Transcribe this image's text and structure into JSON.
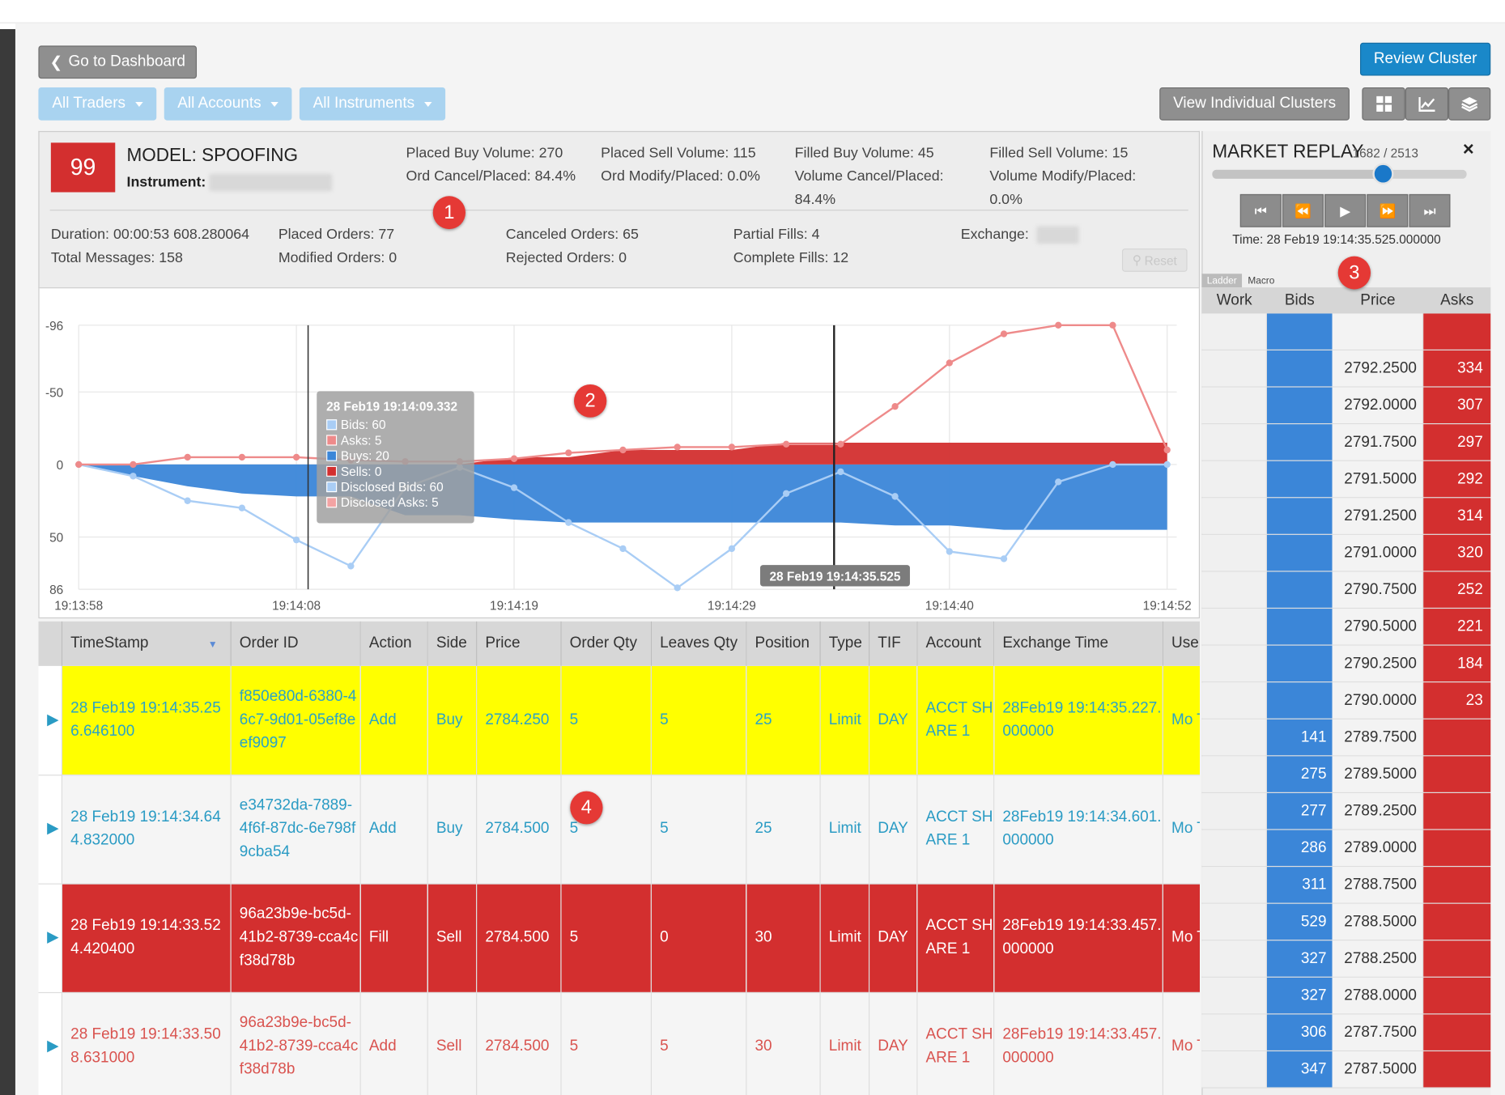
{
  "header": {
    "back_button": "Go to Dashboard",
    "review_button": "Review Cluster",
    "filters": [
      "All Traders",
      "All Accounts",
      "All Instruments"
    ],
    "view_clusters_button": "View Individual Clusters"
  },
  "summary": {
    "score": "99",
    "model": "MODEL: SPOOFING",
    "instrument_label": "Instrument:",
    "placed_buy": "Placed Buy Volume: 270",
    "placed_sell": "Placed Sell Volume: 115",
    "filled_buy": "Filled Buy Volume: 45",
    "filled_sell": "Filled Sell Volume: 15",
    "ord_cancel": "Ord Cancel/Placed: 84.4%",
    "ord_modify": "Ord Modify/Placed: 0.0%",
    "vol_cancel_1": "Volume Cancel/Placed:",
    "vol_cancel_2": "84.4%",
    "vol_modify_1": "Volume Modify/Placed:",
    "vol_modify_2": "0.0%",
    "duration": "Duration: 00:00:53 608.280064",
    "total_messages": "Total Messages: 158",
    "placed_orders": "Placed Orders: 77",
    "modified_orders": "Modified Orders: 0",
    "canceled_orders": "Canceled Orders: 65",
    "rejected_orders": "Rejected Orders: 0",
    "partial_fills": "Partial Fills: 4",
    "complete_fills": "Complete Fills: 12",
    "exchange_label": "Exchange:",
    "reset_button": "Reset"
  },
  "markers": [
    "1",
    "2",
    "3",
    "4"
  ],
  "chart_data": {
    "type": "area",
    "x_ticks": [
      "19:13:58",
      "19:14:08",
      "19:14:19",
      "19:14:29",
      "19:14:40",
      "19:14:52"
    ],
    "y_ticks": [
      "-96",
      "-50",
      "0",
      "50",
      "86"
    ],
    "ylim": [
      -96,
      86
    ],
    "series": [
      {
        "name": "Bids",
        "values": [
          0,
          8,
          25,
          30,
          52,
          70,
          16,
          2,
          16,
          40,
          58,
          85,
          58,
          20,
          5,
          22,
          60,
          65,
          12,
          0,
          0
        ]
      },
      {
        "name": "Asks",
        "values": [
          0,
          0,
          -5,
          -5,
          -5,
          -3,
          -2,
          -2,
          -4,
          -8,
          -10,
          -12,
          -12,
          -14,
          -14,
          -40,
          -70,
          -90,
          -96,
          -96,
          -10
        ]
      },
      {
        "name": "Buys",
        "values": [
          0,
          8,
          15,
          20,
          22,
          22,
          35,
          35,
          38,
          40,
          40,
          40,
          40,
          40,
          40,
          42,
          42,
          45,
          45,
          45,
          45
        ]
      },
      {
        "name": "Sells",
        "values": [
          0,
          0,
          0,
          0,
          0,
          0,
          0,
          0,
          -5,
          -5,
          -10,
          -10,
          -10,
          -15,
          -15,
          -15,
          -15,
          -15,
          -15,
          -15,
          -15
        ]
      }
    ],
    "tooltip": {
      "title": "28 Feb19 19:14:09.332",
      "items": [
        "Bids: 60",
        "Asks: 5",
        "Buys: 20",
        "Sells: 0",
        "Disclosed Bids: 60",
        "Disclosed Asks: 5"
      ]
    },
    "crosshair_label": "28 Feb19 19:14:35.525"
  },
  "colors": {
    "bids": "#3b86d8",
    "asks": "#ee8a8a",
    "buys": "#3b86d8",
    "sells": "#d32f2f",
    "disclosed_bids": "#a9cdf5",
    "disclosed_asks": "#f3a3a3"
  },
  "table": {
    "columns": [
      "TimeStamp",
      "Order ID",
      "Action",
      "Side",
      "Price",
      "Order Qty",
      "Leaves Qty",
      "Position",
      "Type",
      "TIF",
      "Account",
      "Exchange Time",
      "Use"
    ],
    "rows": [
      {
        "style": "yellow",
        "ts": "28 Feb19 19:14:35.256.646100",
        "id": "f850e80d-6380-46c7-9d01-05ef8eef9097",
        "action": "Add",
        "side": "Buy",
        "price": "2784.250",
        "qty": "5",
        "leaves": "5",
        "pos": "25",
        "type": "Limit",
        "tif": "DAY",
        "acct": "ACCT SHARE 1",
        "ext": "28Feb19 19:14:35.227.000000",
        "user": "Mo Trin"
      },
      {
        "style": "white",
        "ts": "28 Feb19 19:14:34.644.832000",
        "id": "e34732da-7889-4f6f-87dc-6e798f9cba54",
        "action": "Add",
        "side": "Buy",
        "price": "2784.500",
        "qty": "5",
        "leaves": "5",
        "pos": "25",
        "type": "Limit",
        "tif": "DAY",
        "acct": "ACCT SHARE 1",
        "ext": "28Feb19 19:14:34.601.000000",
        "user": "Mo Trin"
      },
      {
        "style": "red",
        "ts": "28 Feb19 19:14:33.524.420400",
        "id": "96a23b9e-bc5d-41b2-8739-cca4cf38d78b",
        "action": "Fill",
        "side": "Sell",
        "price": "2784.500",
        "qty": "5",
        "leaves": "0",
        "pos": "30",
        "type": "Limit",
        "tif": "DAY",
        "acct": "ACCT SHARE 1",
        "ext": "28Feb19 19:14:33.457.000000",
        "user": "Mo Trin"
      },
      {
        "style": "pink",
        "ts": "28 Feb19 19:14:33.508.631000",
        "id": "96a23b9e-bc5d-41b2-8739-cca4cf38d78b",
        "action": "Add",
        "side": "Sell",
        "price": "2784.500",
        "qty": "5",
        "leaves": "5",
        "pos": "30",
        "type": "Limit",
        "tif": "DAY",
        "acct": "ACCT SHARE 1",
        "ext": "28Feb19 19:14:33.457.000000",
        "user": "Mo Trin"
      }
    ]
  },
  "replay": {
    "title": "MARKET REPLAY",
    "counter": "1682 / 2513",
    "progress": 0.67,
    "time": "Time: 28 Feb19 19:14:35.525.000000",
    "tabs": [
      "Ladder",
      "Macro"
    ],
    "headers": [
      "Work",
      "Bids",
      "Price",
      "Asks"
    ],
    "ladder": [
      {
        "price": "",
        "bid": "",
        "ask": ""
      },
      {
        "price": "2792.2500",
        "bid": "",
        "ask": "334"
      },
      {
        "price": "2792.0000",
        "bid": "",
        "ask": "307"
      },
      {
        "price": "2791.7500",
        "bid": "",
        "ask": "297"
      },
      {
        "price": "2791.5000",
        "bid": "",
        "ask": "292"
      },
      {
        "price": "2791.2500",
        "bid": "",
        "ask": "314"
      },
      {
        "price": "2791.0000",
        "bid": "",
        "ask": "320"
      },
      {
        "price": "2790.7500",
        "bid": "",
        "ask": "252"
      },
      {
        "price": "2790.5000",
        "bid": "",
        "ask": "221"
      },
      {
        "price": "2790.2500",
        "bid": "",
        "ask": "184"
      },
      {
        "price": "2790.0000",
        "bid": "",
        "ask": "23"
      },
      {
        "price": "2789.7500",
        "bid": "141",
        "ask": ""
      },
      {
        "price": "2789.5000",
        "bid": "275",
        "ask": ""
      },
      {
        "price": "2789.2500",
        "bid": "277",
        "ask": ""
      },
      {
        "price": "2789.0000",
        "bid": "286",
        "ask": ""
      },
      {
        "price": "2788.7500",
        "bid": "311",
        "ask": ""
      },
      {
        "price": "2788.5000",
        "bid": "529",
        "ask": ""
      },
      {
        "price": "2788.2500",
        "bid": "327",
        "ask": ""
      },
      {
        "price": "2788.0000",
        "bid": "327",
        "ask": ""
      },
      {
        "price": "2787.7500",
        "bid": "306",
        "ask": ""
      },
      {
        "price": "2787.5000",
        "bid": "347",
        "ask": ""
      }
    ]
  }
}
